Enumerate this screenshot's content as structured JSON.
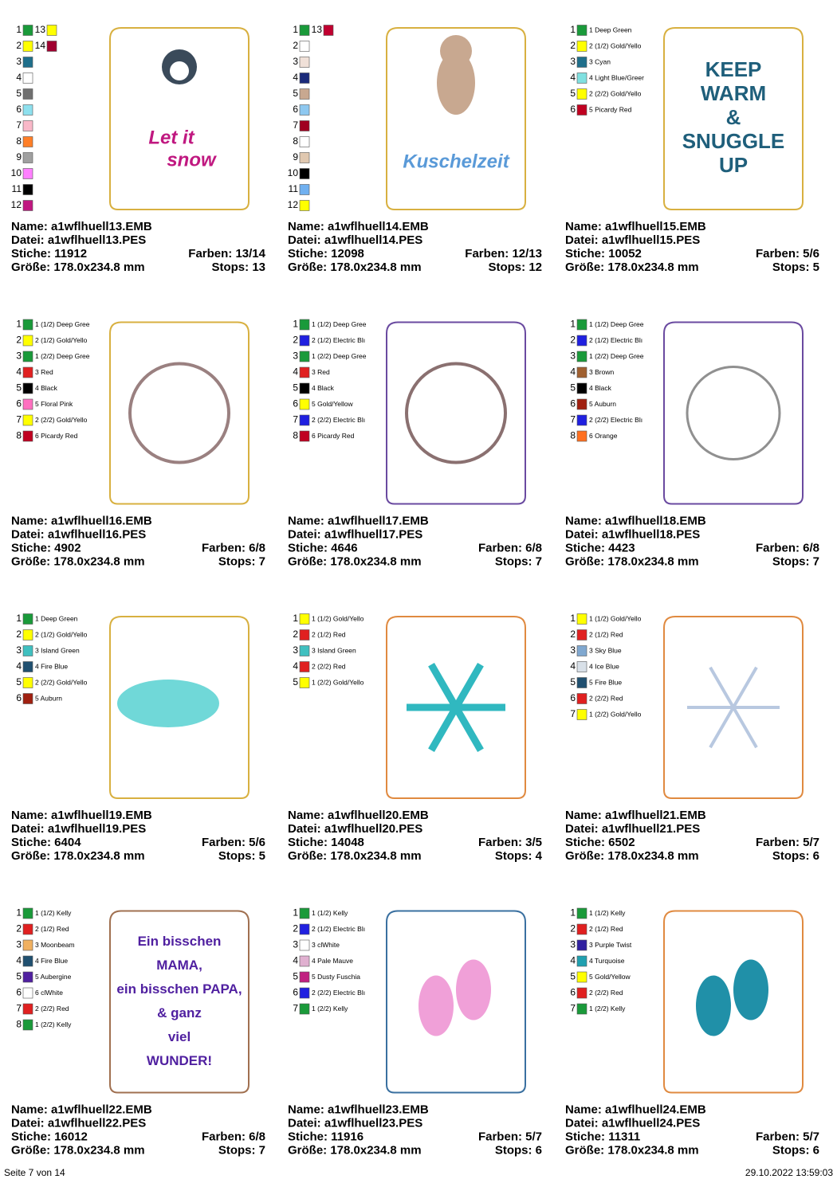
{
  "cards": [
    {
      "colors": [
        {
          "number": "1",
          "color": "#1a9a3a"
        },
        {
          "number": "2",
          "color": "#ffff00"
        },
        {
          "number": "3",
          "color": "#1f6f8b"
        },
        {
          "number": "4",
          "color": "#ffffff"
        },
        {
          "number": "5",
          "color": "#707070"
        },
        {
          "number": "6",
          "color": "#8ee0ee"
        },
        {
          "number": "7",
          "color": "#f9b8c8"
        },
        {
          "number": "8",
          "color": "#ff7f27"
        },
        {
          "number": "9",
          "color": "#a0a0a0"
        },
        {
          "number": "10",
          "color": "#ff80ff"
        },
        {
          "number": "11",
          "color": "#000000"
        },
        {
          "number": "12",
          "color": "#c01880"
        },
        {
          "number": "13",
          "color": "#ffff00"
        },
        {
          "number": "14",
          "color": "#a00030"
        }
      ],
      "outline": "#d8b040",
      "design_text": [
        "Let it",
        "snow"
      ],
      "text_color": "#c01880",
      "name": "Name: a1wflhuell13.EMB",
      "datei": "Datei: a1wflhuell13.PES",
      "stiche": "Stiche: 11912",
      "farben": "Farben: 13/14",
      "groesse": "Größe: 178.0x234.8 mm",
      "stops": "Stops: 13"
    },
    {
      "colors": [
        {
          "number": "1",
          "color": "#1a9a3a"
        },
        {
          "number": "2",
          "color": "#ffffff"
        },
        {
          "number": "3",
          "color": "#f0e0d8"
        },
        {
          "number": "4",
          "color": "#1a2a7a"
        },
        {
          "number": "5",
          "color": "#c8a890"
        },
        {
          "number": "6",
          "color": "#8ec8f0"
        },
        {
          "number": "7",
          "color": "#a00020"
        },
        {
          "number": "8",
          "color": "#ffffff"
        },
        {
          "number": "9",
          "color": "#e0c8b0"
        },
        {
          "number": "10",
          "color": "#000000"
        },
        {
          "number": "11",
          "color": "#70b0f0"
        },
        {
          "number": "12",
          "color": "#ffff00"
        },
        {
          "number": "13",
          "color": "#c00030"
        }
      ],
      "outline": "#d8b040",
      "design_text": [
        "Kuschelzeit"
      ],
      "text_color": "#5a9ad8",
      "name": "Name: a1wflhuell14.EMB",
      "datei": "Datei: a1wflhuell14.PES",
      "stiche": "Stiche: 12098",
      "farben": "Farben: 12/13",
      "groesse": "Größe: 178.0x234.8 mm",
      "stops": "Stops: 12"
    },
    {
      "colors": [
        {
          "number": "1",
          "color": "#1a9a3a",
          "label": "1 Deep Green"
        },
        {
          "number": "2",
          "color": "#ffff00",
          "label": "2 (1/2) Gold/Yello"
        },
        {
          "number": "3",
          "color": "#1f6f8b",
          "label": "3 Cyan"
        },
        {
          "number": "4",
          "color": "#80e0e0",
          "label": "4 Light Blue/Greer"
        },
        {
          "number": "5",
          "color": "#ffff00",
          "label": "2 (2/2) Gold/Yello"
        },
        {
          "number": "6",
          "color": "#c00020",
          "label": "5 Picardy Red"
        }
      ],
      "outline": "#d8b040",
      "design_text": [
        "KEEP",
        "WARM",
        "&",
        "SNUGGLE",
        "UP"
      ],
      "text_color": "#1f5f7b",
      "name": "Name: a1wflhuell15.EMB",
      "datei": "Datei: a1wflhuell15.PES",
      "stiche": "Stiche: 10052",
      "farben": "Farben: 5/6",
      "groesse": "Größe: 178.0x234.8 mm",
      "stops": "Stops: 5"
    },
    {
      "colors": [
        {
          "number": "1",
          "color": "#1a9a3a",
          "label": "1 (1/2) Deep Gree"
        },
        {
          "number": "2",
          "color": "#ffff00",
          "label": "2 (1/2) Gold/Yello"
        },
        {
          "number": "3",
          "color": "#1a9a3a",
          "label": "1 (2/2) Deep Gree"
        },
        {
          "number": "4",
          "color": "#e02020",
          "label": "3 Red"
        },
        {
          "number": "5",
          "color": "#000000",
          "label": "4 Black"
        },
        {
          "number": "6",
          "color": "#ff70c0",
          "label": "5 Floral Pink"
        },
        {
          "number": "7",
          "color": "#ffff00",
          "label": "2 (2/2) Gold/Yello"
        },
        {
          "number": "8",
          "color": "#c00020",
          "label": "6 Picardy Red"
        }
      ],
      "outline": "#d8b040",
      "name": "Name: a1wflhuell16.EMB",
      "datei": "Datei: a1wflhuell16.PES",
      "stiche": "Stiche: 4902",
      "farben": "Farben: 6/8",
      "groesse": "Größe: 178.0x234.8 mm",
      "stops": "Stops: 7"
    },
    {
      "colors": [
        {
          "number": "1",
          "color": "#1a9a3a",
          "label": "1 (1/2) Deep Gree"
        },
        {
          "number": "2",
          "color": "#2020e0",
          "label": "2 (1/2) Electric Blı"
        },
        {
          "number": "3",
          "color": "#1a9a3a",
          "label": "1 (2/2) Deep Gree"
        },
        {
          "number": "4",
          "color": "#e02020",
          "label": "3 Red"
        },
        {
          "number": "5",
          "color": "#000000",
          "label": "4 Black"
        },
        {
          "number": "6",
          "color": "#ffff00",
          "label": "5 Gold/Yellow"
        },
        {
          "number": "7",
          "color": "#2020e0",
          "label": "2 (2/2) Electric Blı"
        },
        {
          "number": "8",
          "color": "#c00020",
          "label": "6 Picardy Red"
        }
      ],
      "outline": "#6a4aa0",
      "name": "Name: a1wflhuell17.EMB",
      "datei": "Datei: a1wflhuell17.PES",
      "stiche": "Stiche: 4646",
      "farben": "Farben: 6/8",
      "groesse": "Größe: 178.0x234.8 mm",
      "stops": "Stops: 7"
    },
    {
      "colors": [
        {
          "number": "1",
          "color": "#1a9a3a",
          "label": "1 (1/2) Deep Gree"
        },
        {
          "number": "2",
          "color": "#2020e0",
          "label": "2 (1/2) Electric Blı"
        },
        {
          "number": "3",
          "color": "#1a9a3a",
          "label": "1 (2/2) Deep Gree"
        },
        {
          "number": "4",
          "color": "#a06030",
          "label": "3 Brown"
        },
        {
          "number": "5",
          "color": "#000000",
          "label": "4 Black"
        },
        {
          "number": "6",
          "color": "#a02010",
          "label": "5 Auburn"
        },
        {
          "number": "7",
          "color": "#2020e0",
          "label": "2 (2/2) Electric Blı"
        },
        {
          "number": "8",
          "color": "#ff7020",
          "label": "6 Orange"
        }
      ],
      "outline": "#6a4aa0",
      "name": "Name: a1wflhuell18.EMB",
      "datei": "Datei: a1wflhuell18.PES",
      "stiche": "Stiche: 4423",
      "farben": "Farben: 6/8",
      "groesse": "Größe: 178.0x234.8 mm",
      "stops": "Stops: 7"
    },
    {
      "colors": [
        {
          "number": "1",
          "color": "#1a9a3a",
          "label": "1 Deep Green"
        },
        {
          "number": "2",
          "color": "#ffff00",
          "label": "2 (1/2) Gold/Yello"
        },
        {
          "number": "3",
          "color": "#40c0c0",
          "label": "3 Island Green"
        },
        {
          "number": "4",
          "color": "#205070",
          "label": "4 Fire Blue"
        },
        {
          "number": "5",
          "color": "#ffff00",
          "label": "2 (2/2) Gold/Yello"
        },
        {
          "number": "6",
          "color": "#a02010",
          "label": "5 Auburn"
        }
      ],
      "outline": "#d8b040",
      "name": "Name: a1wflhuell19.EMB",
      "datei": "Datei: a1wflhuell19.PES",
      "stiche": "Stiche: 6404",
      "farben": "Farben: 5/6",
      "groesse": "Größe: 178.0x234.8 mm",
      "stops": "Stops: 5"
    },
    {
      "colors": [
        {
          "number": "1",
          "color": "#ffff00",
          "label": "1 (1/2) Gold/Yello"
        },
        {
          "number": "2",
          "color": "#e02020",
          "label": "2 (1/2) Red"
        },
        {
          "number": "3",
          "color": "#40c0c0",
          "label": "3 Island Green"
        },
        {
          "number": "4",
          "color": "#e02020",
          "label": "2 (2/2) Red"
        },
        {
          "number": "5",
          "color": "#ffff00",
          "label": "1 (2/2) Gold/Yello"
        }
      ],
      "outline": "#e08a40",
      "name": "Name: a1wflhuell20.EMB",
      "datei": "Datei: a1wflhuell20.PES",
      "stiche": "Stiche: 14048",
      "farben": "Farben: 3/5",
      "groesse": "Größe: 178.0x234.8 mm",
      "stops": "Stops: 4"
    },
    {
      "colors": [
        {
          "number": "1",
          "color": "#ffff00",
          "label": "1 (1/2) Gold/Yello"
        },
        {
          "number": "2",
          "color": "#e02020",
          "label": "2 (1/2) Red"
        },
        {
          "number": "3",
          "color": "#80a8d0",
          "label": "3 Sky Blue"
        },
        {
          "number": "4",
          "color": "#d8e0e8",
          "label": "4 Ice Blue"
        },
        {
          "number": "5",
          "color": "#205070",
          "label": "5 Fire Blue"
        },
        {
          "number": "6",
          "color": "#e02020",
          "label": "2 (2/2) Red"
        },
        {
          "number": "7",
          "color": "#ffff00",
          "label": "1 (2/2) Gold/Yello"
        }
      ],
      "outline": "#e08a40",
      "name": "Name: a1wflhuell21.EMB",
      "datei": "Datei: a1wflhuell21.PES",
      "stiche": "Stiche: 6502",
      "farben": "Farben: 5/7",
      "groesse": "Größe: 178.0x234.8 mm",
      "stops": "Stops: 6"
    },
    {
      "colors": [
        {
          "number": "1",
          "color": "#1a9a3a",
          "label": "1 (1/2) Kelly"
        },
        {
          "number": "2",
          "color": "#e02020",
          "label": "2 (1/2) Red"
        },
        {
          "number": "3",
          "color": "#f0b060",
          "label": "3 Moonbeam"
        },
        {
          "number": "4",
          "color": "#205070",
          "label": "4 Fire Blue"
        },
        {
          "number": "5",
          "color": "#5020a0",
          "label": "5 Aubergine"
        },
        {
          "number": "6",
          "color": "#ffffff",
          "label": "6 clWhite"
        },
        {
          "number": "7",
          "color": "#e02020",
          "label": "2 (2/2) Red"
        },
        {
          "number": "8",
          "color": "#1a9a3a",
          "label": "1 (2/2) Kelly"
        }
      ],
      "outline": "#a07050",
      "design_text": [
        "Ein bisschen",
        "MAMA,",
        "ein bisschen PAPA,",
        "& ganz",
        "viel",
        "WUNDER!"
      ],
      "text_color": "#5020a0",
      "name": "Name: a1wflhuell22.EMB",
      "datei": "Datei: a1wflhuell22.PES",
      "stiche": "Stiche: 16012",
      "farben": "Farben: 6/8",
      "groesse": "Größe: 178.0x234.8 mm",
      "stops": "Stops: 7"
    },
    {
      "colors": [
        {
          "number": "1",
          "color": "#1a9a3a",
          "label": "1 (1/2) Kelly"
        },
        {
          "number": "2",
          "color": "#2020e0",
          "label": "2 (1/2) Electric Blı"
        },
        {
          "number": "3",
          "color": "#ffffff",
          "label": "3 clWhite"
        },
        {
          "number": "4",
          "color": "#e0b0d0",
          "label": "4 Pale Mauve"
        },
        {
          "number": "5",
          "color": "#c02080",
          "label": "5 Dusty Fuschia"
        },
        {
          "number": "6",
          "color": "#2020e0",
          "label": "2 (2/2) Electric Blı"
        },
        {
          "number": "7",
          "color": "#1a9a3a",
          "label": "1 (2/2) Kelly"
        }
      ],
      "outline": "#3a70a0",
      "name": "Name: a1wflhuell23.EMB",
      "datei": "Datei: a1wflhuell23.PES",
      "stiche": "Stiche: 11916",
      "farben": "Farben: 5/7",
      "groesse": "Größe: 178.0x234.8 mm",
      "stops": "Stops: 6"
    },
    {
      "colors": [
        {
          "number": "1",
          "color": "#1a9a3a",
          "label": "1 (1/2) Kelly"
        },
        {
          "number": "2",
          "color": "#e02020",
          "label": "2 (1/2) Red"
        },
        {
          "number": "3",
          "color": "#3020a0",
          "label": "3 Purple Twist"
        },
        {
          "number": "4",
          "color": "#20a0b0",
          "label": "4 Turquoise"
        },
        {
          "number": "5",
          "color": "#ffff00",
          "label": "5 Gold/Yellow"
        },
        {
          "number": "6",
          "color": "#e02020",
          "label": "2 (2/2) Red"
        },
        {
          "number": "7",
          "color": "#1a9a3a",
          "label": "1 (2/2) Kelly"
        }
      ],
      "outline": "#e08a40",
      "name": "Name: a1wflhuell24.EMB",
      "datei": "Datei: a1wflhuell24.PES",
      "stiche": "Stiche: 11311",
      "farben": "Farben: 5/7",
      "groesse": "Größe: 178.0x234.8 mm",
      "stops": "Stops: 6"
    }
  ],
  "footer": {
    "page": "Seite 7 von 14",
    "timestamp": "29.10.2022 13:59:03"
  }
}
